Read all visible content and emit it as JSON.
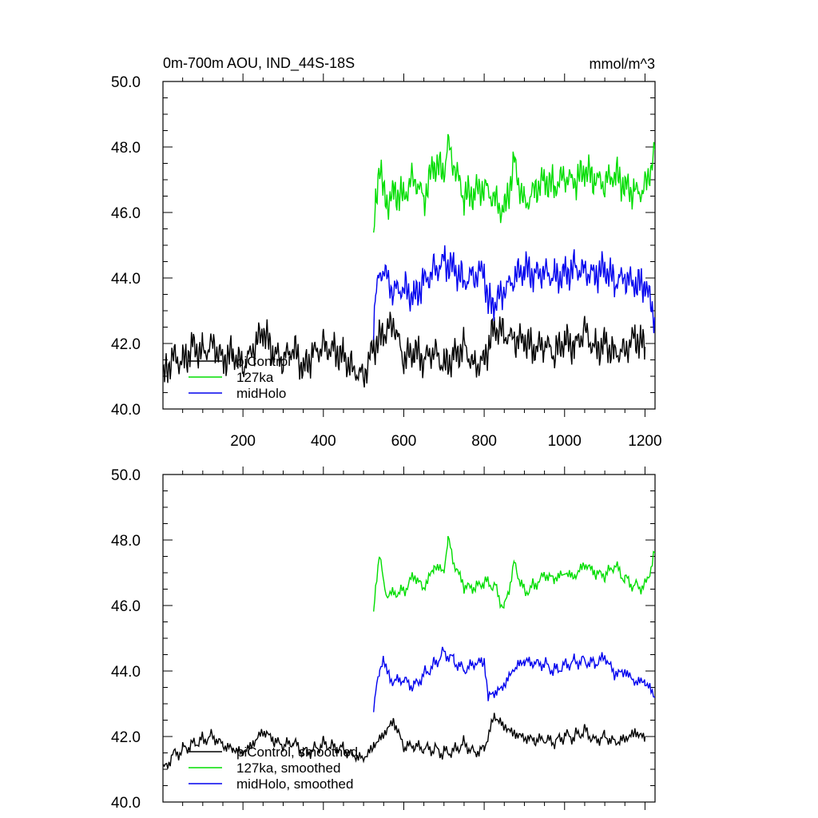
{
  "figure": {
    "title": "0m-700m AOU, IND_44S-18S",
    "units": "mmol/m^3"
  },
  "chart_data": [
    {
      "type": "line",
      "title": "0m-700m AOU, IND_44S-18S",
      "ylabel": "mmol/m^3",
      "xlim": [
        1,
        1225
      ],
      "ylim": [
        40,
        50
      ],
      "xticks": [
        200,
        400,
        600,
        800,
        1000,
        1200
      ],
      "yticks": [
        40.0,
        42.0,
        44.0,
        46.0,
        48.0,
        50.0
      ],
      "ytick_labels": [
        "40.0",
        "42.0",
        "44.0",
        "46.0",
        "48.0",
        "50.0"
      ],
      "xtick_labels": [
        "200",
        "400",
        "600",
        "800",
        "1000",
        "1200"
      ],
      "legend_position": "bottom-left",
      "grid": false,
      "series": [
        {
          "name": "piControl",
          "color": "#000000",
          "x": [
            1,
            25,
            50,
            75,
            100,
            125,
            150,
            175,
            200,
            225,
            250,
            275,
            300,
            325,
            350,
            375,
            400,
            425,
            450,
            475,
            500,
            525,
            550,
            575,
            600,
            625,
            650,
            675,
            700,
            725,
            750,
            775,
            800,
            825,
            850,
            875,
            900,
            925,
            950,
            975,
            1000,
            1025,
            1050,
            1075,
            1100,
            1125,
            1150,
            1175,
            1200
          ],
          "y": [
            40.9,
            41.6,
            41.4,
            41.9,
            41.7,
            42.0,
            41.5,
            41.7,
            41.3,
            41.8,
            42.4,
            41.7,
            41.5,
            41.9,
            41.2,
            41.7,
            41.9,
            41.8,
            41.6,
            41.2,
            41.0,
            41.9,
            42.3,
            42.6,
            41.5,
            41.8,
            41.5,
            41.8,
            41.3,
            41.6,
            41.9,
            41.3,
            41.5,
            42.5,
            42.3,
            42.1,
            42.1,
            41.8,
            42.0,
            41.7,
            42.1,
            41.9,
            42.4,
            41.8,
            42.0,
            41.7,
            41.8,
            42.2,
            41.9
          ]
        },
        {
          "name": "127ka",
          "color": "#00dd00",
          "x": [
            525,
            530,
            540,
            550,
            560,
            575,
            600,
            625,
            650,
            675,
            700,
            710,
            725,
            750,
            775,
            800,
            825,
            850,
            875,
            900,
            925,
            950,
            975,
            1000,
            1025,
            1050,
            1075,
            1100,
            1125,
            1150,
            1175,
            1200,
            1225
          ],
          "y": [
            45.1,
            46.2,
            47.6,
            46.5,
            46.3,
            46.6,
            46.5,
            47.1,
            46.4,
            47.5,
            47.2,
            48.1,
            47.4,
            46.5,
            46.6,
            46.8,
            46.4,
            46.0,
            47.5,
            46.2,
            46.7,
            47.0,
            46.8,
            47.1,
            46.9,
            47.3,
            47.0,
            46.9,
            47.2,
            46.8,
            46.6,
            46.7,
            47.9
          ]
        },
        {
          "name": "midHolo",
          "color": "#0000ee",
          "x": [
            525,
            530,
            540,
            550,
            560,
            575,
            600,
            625,
            650,
            675,
            700,
            725,
            750,
            775,
            800,
            810,
            825,
            850,
            875,
            900,
            925,
            950,
            975,
            1000,
            1025,
            1050,
            1075,
            1100,
            1125,
            1150,
            1175,
            1200,
            1225
          ],
          "y": [
            42.5,
            43.4,
            44.1,
            44.3,
            43.9,
            43.6,
            43.7,
            43.4,
            43.9,
            44.2,
            44.5,
            44.3,
            43.9,
            44.1,
            44.2,
            43.2,
            43.2,
            43.6,
            44.0,
            44.3,
            44.1,
            44.2,
            44.0,
            44.1,
            44.3,
            44.2,
            44.1,
            44.3,
            43.9,
            44.0,
            43.8,
            43.8,
            42.8
          ]
        }
      ]
    },
    {
      "type": "line",
      "xlim": [
        1,
        1225
      ],
      "ylim": [
        40,
        50
      ],
      "yticks": [
        40.0,
        42.0,
        44.0,
        46.0,
        48.0,
        50.0
      ],
      "ytick_labels": [
        "40.0",
        "42.0",
        "44.0",
        "46.0",
        "48.0",
        "50.0"
      ],
      "legend_position": "bottom-left",
      "grid": false,
      "series": [
        {
          "name": "piControl, smoothed",
          "color": "#000000",
          "x": [
            1,
            25,
            50,
            75,
            100,
            125,
            150,
            175,
            200,
            225,
            250,
            275,
            300,
            325,
            350,
            375,
            400,
            425,
            450,
            475,
            500,
            525,
            550,
            575,
            600,
            625,
            650,
            675,
            700,
            725,
            750,
            775,
            800,
            825,
            850,
            875,
            900,
            925,
            950,
            975,
            1000,
            1025,
            1050,
            1075,
            1100,
            1125,
            1150,
            1175,
            1200
          ],
          "y": [
            41.0,
            41.4,
            41.6,
            41.8,
            41.9,
            42.0,
            41.7,
            41.6,
            41.5,
            41.8,
            42.2,
            41.9,
            41.7,
            41.8,
            41.5,
            41.6,
            41.8,
            41.7,
            41.6,
            41.4,
            41.3,
            41.7,
            42.1,
            42.5,
            41.7,
            41.7,
            41.6,
            41.6,
            41.5,
            41.6,
            41.8,
            41.5,
            41.6,
            42.6,
            42.3,
            42.1,
            42.0,
            41.9,
            41.9,
            41.8,
            42.0,
            42.0,
            42.2,
            41.9,
            42.0,
            41.8,
            41.9,
            42.1,
            42.0
          ]
        },
        {
          "name": "127ka, smoothed",
          "color": "#00dd00",
          "x": [
            525,
            530,
            540,
            550,
            560,
            575,
            600,
            625,
            650,
            675,
            700,
            710,
            725,
            750,
            775,
            800,
            825,
            850,
            875,
            900,
            925,
            950,
            975,
            1000,
            1025,
            1050,
            1075,
            1100,
            1125,
            1150,
            1175,
            1200,
            1225
          ],
          "y": [
            45.7,
            46.4,
            47.7,
            46.6,
            46.3,
            46.4,
            46.4,
            46.9,
            46.5,
            47.2,
            47.1,
            48.0,
            47.3,
            46.6,
            46.5,
            46.7,
            46.6,
            45.9,
            47.3,
            46.4,
            46.6,
            46.9,
            46.8,
            47.0,
            46.9,
            47.3,
            47.0,
            46.9,
            47.2,
            46.8,
            46.6,
            46.6,
            47.6
          ]
        },
        {
          "name": "midHolo, smoothed",
          "color": "#0000ee",
          "x": [
            525,
            530,
            540,
            550,
            560,
            575,
            600,
            625,
            650,
            675,
            700,
            725,
            750,
            775,
            800,
            810,
            825,
            850,
            875,
            900,
            925,
            950,
            975,
            1000,
            1025,
            1050,
            1075,
            1100,
            1125,
            1150,
            1175,
            1200,
            1225
          ],
          "y": [
            42.9,
            43.3,
            44.0,
            44.4,
            43.9,
            43.7,
            43.7,
            43.5,
            43.9,
            44.2,
            44.6,
            44.3,
            44.0,
            44.2,
            44.3,
            43.2,
            43.3,
            43.6,
            44.1,
            44.3,
            44.2,
            44.2,
            44.0,
            44.2,
            44.3,
            44.3,
            44.2,
            44.4,
            43.9,
            44.0,
            43.7,
            43.7,
            43.2
          ]
        }
      ]
    }
  ]
}
